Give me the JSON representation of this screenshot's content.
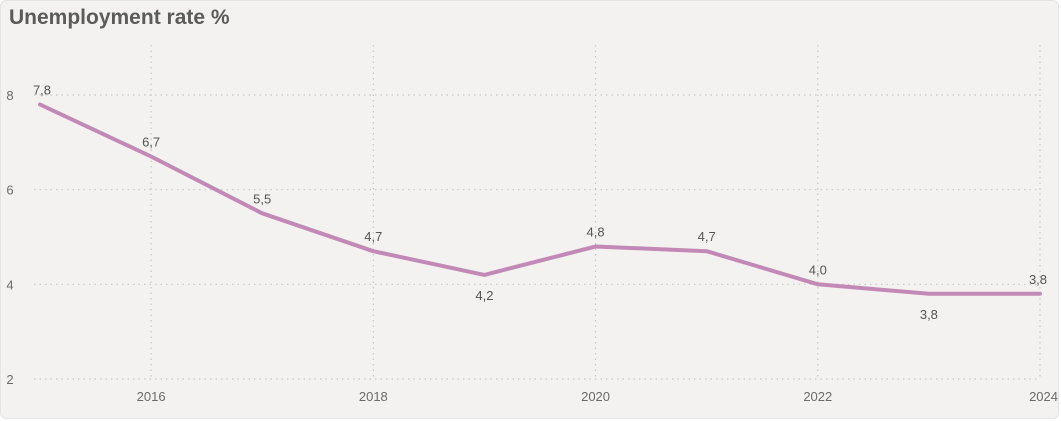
{
  "chart_data": {
    "type": "line",
    "title": "Unemployment rate %",
    "x": [
      2015,
      2016,
      2017,
      2018,
      2019,
      2020,
      2021,
      2022,
      2023,
      2024
    ],
    "series": [
      {
        "values": [
          7.8,
          6.7,
          5.5,
          4.7,
          4.2,
          4.8,
          4.7,
          4.0,
          3.8,
          3.8
        ],
        "labels": [
          "7,8",
          "6,7",
          "5,5",
          "4,7",
          "4,2",
          "4,8",
          "4,7",
          "4,0",
          "3,8",
          "3,8"
        ],
        "color": "#c389b6"
      }
    ],
    "x_ticks": [
      2016,
      2018,
      2020,
      2022,
      2024
    ],
    "x_tick_labels": [
      "2016",
      "2018",
      "2020",
      "2022",
      "2024"
    ],
    "y_ticks": [
      2,
      4,
      6,
      8
    ],
    "y_tick_labels": [
      "2",
      "4",
      "6",
      "8"
    ],
    "ylim": [
      2,
      8
    ],
    "grid": true,
    "xlabel": "",
    "ylabel": ""
  },
  "colors": {
    "background": "#f3f2f1",
    "line": "#c389b6",
    "grid": "#c8c8c8",
    "title": "#5b5b5b"
  }
}
